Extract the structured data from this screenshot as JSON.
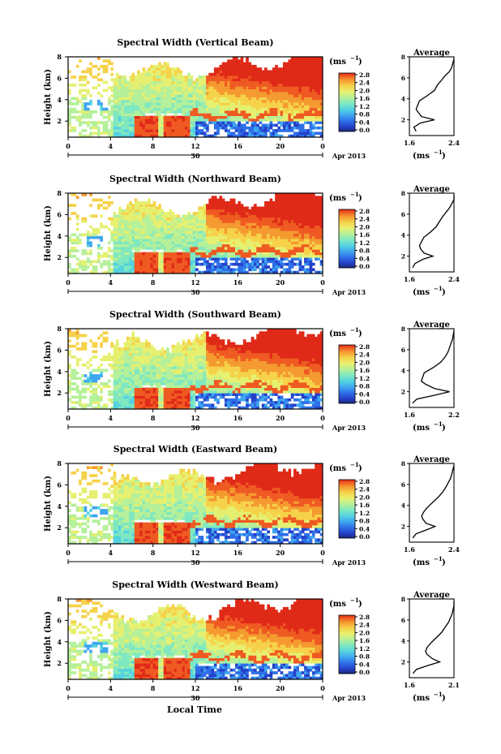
{
  "panels": [
    {
      "title": "Spectral Width (Vertical Beam)",
      "avg_xticks": [
        "1.6",
        "2.4"
      ]
    },
    {
      "title": "Spectral Width (Northward Beam)",
      "avg_xticks": [
        "1.6",
        "2.4"
      ]
    },
    {
      "title": "Spectral Width (Southward Beam)",
      "avg_xticks": [
        "1.6",
        "2.2"
      ]
    },
    {
      "title": "Spectral Width (Eastward Beam)",
      "avg_xticks": [
        "1.6",
        "2.4"
      ]
    },
    {
      "title": "Spectral Width (Westward Beam)",
      "avg_xticks": [
        "1.6",
        "2.1"
      ]
    }
  ],
  "labels": {
    "ylabel": "Height (km)",
    "unit": "(ms",
    "unit_sup": "−1",
    "unit_close": ")",
    "avg_title": "Average",
    "day_label": "30",
    "month_label": "Apr 2013",
    "xlabel": "Local Time"
  },
  "colors": {
    "scale": [
      "#1a2a7a",
      "#2440c8",
      "#2f6fe8",
      "#3fa6f0",
      "#55d2e0",
      "#7fe8c0",
      "#b5f09a",
      "#e6f070",
      "#f6d24a",
      "#f49a30",
      "#ef5a22",
      "#e02a18"
    ]
  },
  "chart_data": {
    "type": "heatmap",
    "x_ticks": [
      "0",
      "4",
      "8",
      "12",
      "16",
      "20",
      "0"
    ],
    "y_ticks": [
      "2",
      "4",
      "6",
      "8"
    ],
    "xlim": [
      0,
      24
    ],
    "ylim": [
      0.5,
      8
    ],
    "colorbar_ticks": [
      "0.0",
      "0.4",
      "0.8",
      "1.2",
      "1.6",
      "2.0",
      "2.4",
      "2.8"
    ],
    "colorbar_ticks_alt": [
      "0.0",
      "0.4",
      "0.8",
      "1.2",
      "1.6",
      "2.0",
      "2.4",
      "2.8"
    ],
    "avg_y_ticks": [
      "2",
      "4",
      "6",
      "8"
    ],
    "profiles": [
      {
        "height": [
          0.9,
          1.3,
          1.7,
          2.0,
          2.3,
          2.7,
          3.0,
          3.4,
          3.8,
          4.3,
          4.8,
          5.3,
          5.8,
          6.2,
          6.6,
          7.0,
          7.4,
          7.8
        ],
        "value": [
          1.72,
          1.68,
          1.8,
          2.05,
          1.82,
          1.76,
          1.72,
          1.75,
          1.78,
          1.92,
          2.05,
          2.1,
          2.18,
          2.24,
          2.32,
          2.36,
          2.38,
          2.4
        ],
        "xlim": [
          1.6,
          2.4
        ]
      },
      {
        "height": [
          0.9,
          1.3,
          1.7,
          2.0,
          2.3,
          2.7,
          3.0,
          3.4,
          3.8,
          4.3,
          4.8,
          5.3,
          5.8,
          6.2,
          6.6,
          7.0,
          7.4,
          7.8
        ],
        "value": [
          1.66,
          1.7,
          1.84,
          2.02,
          1.86,
          1.8,
          1.78,
          1.82,
          1.86,
          1.98,
          2.08,
          2.14,
          2.2,
          2.26,
          2.32,
          2.36,
          2.4,
          2.42
        ],
        "xlim": [
          1.6,
          2.4
        ]
      },
      {
        "height": [
          0.9,
          1.3,
          1.7,
          2.0,
          2.3,
          2.7,
          3.0,
          3.4,
          3.8,
          4.3,
          4.8,
          5.3,
          5.8,
          6.2,
          6.6,
          7.0,
          7.4,
          7.8
        ],
        "value": [
          1.64,
          1.7,
          1.96,
          2.14,
          1.94,
          1.82,
          1.76,
          1.78,
          1.8,
          1.92,
          2.02,
          2.08,
          2.12,
          2.14,
          2.16,
          2.18,
          2.19,
          2.2
        ],
        "xlim": [
          1.6,
          2.2
        ]
      },
      {
        "height": [
          0.9,
          1.3,
          1.7,
          2.0,
          2.3,
          2.7,
          3.0,
          3.4,
          3.8,
          4.3,
          4.8,
          5.3,
          5.8,
          6.2,
          6.6,
          7.0,
          7.4,
          7.8
        ],
        "value": [
          1.66,
          1.72,
          1.92,
          2.06,
          1.9,
          1.84,
          1.82,
          1.86,
          1.92,
          2.02,
          2.12,
          2.2,
          2.26,
          2.3,
          2.34,
          2.36,
          2.38,
          2.4
        ],
        "xlim": [
          1.6,
          2.4
        ]
      },
      {
        "height": [
          0.9,
          1.3,
          1.7,
          2.0,
          2.3,
          2.7,
          3.0,
          3.4,
          3.8,
          4.3,
          4.8,
          5.3,
          5.8,
          6.2,
          6.6,
          7.0,
          7.4,
          7.8
        ],
        "value": [
          1.64,
          1.68,
          1.82,
          1.94,
          1.86,
          1.8,
          1.78,
          1.8,
          1.84,
          1.9,
          1.96,
          2.0,
          2.04,
          2.06,
          2.08,
          2.09,
          2.1,
          2.1
        ],
        "xlim": [
          1.6,
          2.1
        ]
      }
    ]
  }
}
